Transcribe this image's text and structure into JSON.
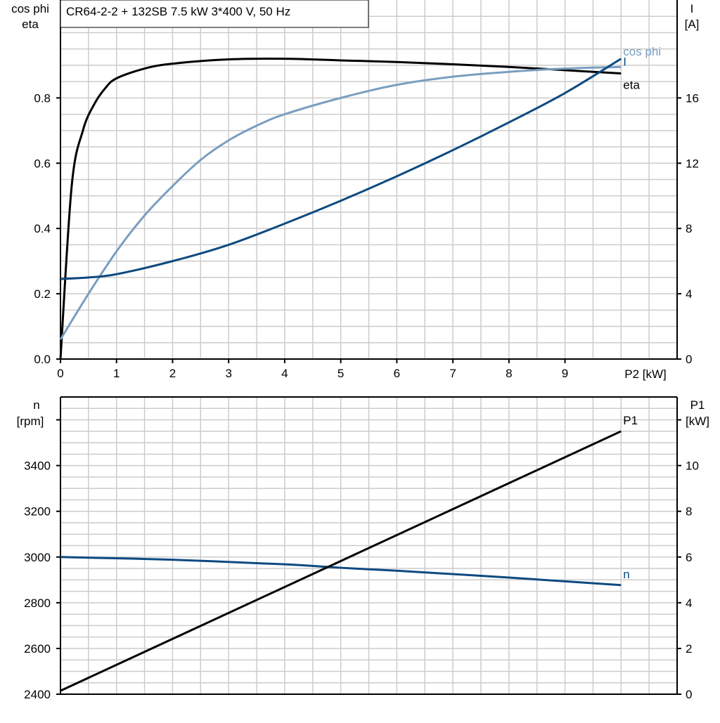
{
  "chart_data": [
    {
      "type": "line",
      "title": "CR64-2-2 + 132SB   7.5 kW   3*400 V, 50 Hz",
      "xlabel": "P2 [kW]",
      "xlim": [
        0,
        11
      ],
      "xticks": [
        "0",
        "1",
        "2",
        "3",
        "4",
        "5",
        "6",
        "7",
        "8",
        "9"
      ],
      "ylabel_left": [
        "cos phi",
        "eta"
      ],
      "ylim_left": [
        0,
        1.1
      ],
      "yticks_left": [
        "0.0",
        "0.2",
        "0.4",
        "0.6",
        "0.8"
      ],
      "ylabel_right": [
        "I",
        "[A]"
      ],
      "ylim_right": [
        0,
        22
      ],
      "yticks_right": [
        "0",
        "4",
        "8",
        "12",
        "16"
      ],
      "grid": true,
      "series": [
        {
          "name": "eta",
          "axis": "left",
          "color": "#000000",
          "x": [
            0,
            0.2,
            0.4,
            0.6,
            0.8,
            1,
            1.5,
            2,
            3,
            4,
            5,
            6,
            7,
            8,
            9,
            10
          ],
          "y": [
            0,
            0.53,
            0.7,
            0.78,
            0.83,
            0.86,
            0.89,
            0.905,
            0.918,
            0.92,
            0.915,
            0.91,
            0.903,
            0.895,
            0.885,
            0.875
          ]
        },
        {
          "name": "cos phi",
          "axis": "left",
          "color": "#7a9ec0",
          "x": [
            0,
            0.5,
            1,
            1.5,
            2,
            2.5,
            3,
            3.5,
            4,
            5,
            6,
            7,
            8,
            9,
            10
          ],
          "y": [
            0.06,
            0.2,
            0.33,
            0.44,
            0.53,
            0.61,
            0.67,
            0.715,
            0.75,
            0.8,
            0.84,
            0.865,
            0.88,
            0.89,
            0.895
          ]
        },
        {
          "name": "I",
          "axis": "right",
          "color": "#0d4a80",
          "x": [
            0,
            0.5,
            1,
            2,
            3,
            4,
            5,
            6,
            7,
            8,
            9,
            10
          ],
          "y": [
            4.9,
            5.0,
            5.2,
            6.0,
            7.0,
            8.3,
            9.7,
            11.2,
            12.8,
            14.5,
            16.3,
            18.4
          ]
        }
      ]
    },
    {
      "type": "line",
      "xlim": [
        0,
        11
      ],
      "ylabel_left": [
        "n",
        "[rpm]"
      ],
      "ylim_left": [
        2400,
        3700
      ],
      "yticks_left": [
        "2400",
        "2600",
        "2800",
        "3000",
        "3200",
        "3400"
      ],
      "ylabel_right": [
        "P1",
        "[kW]"
      ],
      "ylim_right": [
        0,
        13
      ],
      "yticks_right": [
        "0",
        "2",
        "4",
        "6",
        "8",
        "10"
      ],
      "grid": true,
      "series": [
        {
          "name": "n",
          "axis": "left",
          "color": "#0d4a80",
          "x": [
            0,
            2,
            4,
            5,
            6,
            8,
            10
          ],
          "y": [
            3000,
            2988,
            2968,
            2953,
            2940,
            2910,
            2877
          ]
        },
        {
          "name": "P1",
          "axis": "right",
          "color": "#000000",
          "x": [
            0,
            10
          ],
          "y": [
            0.15,
            11.5
          ]
        }
      ]
    }
  ]
}
